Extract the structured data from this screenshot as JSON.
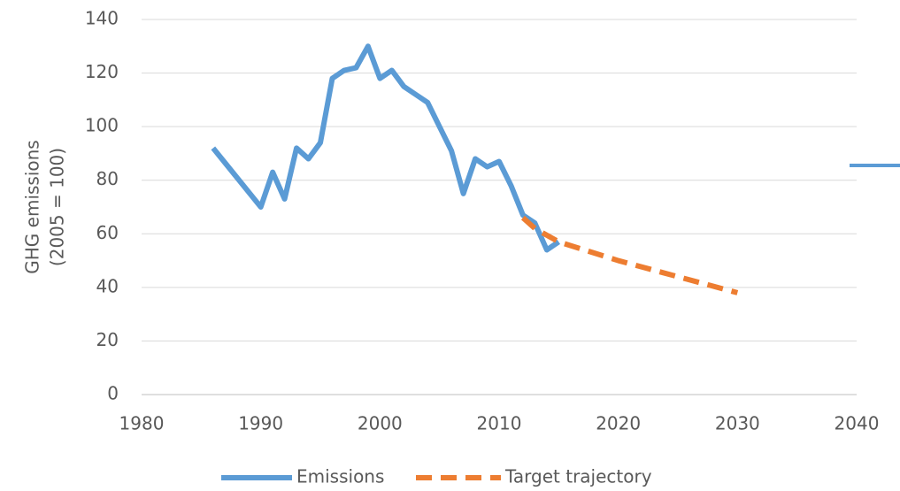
{
  "chart_data": {
    "type": "line",
    "ylabel": [
      "GHG  emissions",
      "(2005 = 100)"
    ],
    "xlim": [
      1980,
      2040
    ],
    "xticks": [
      1980,
      1990,
      2000,
      2010,
      2020,
      2030,
      2040
    ],
    "ylim": [
      0,
      140
    ],
    "yticks": [
      0,
      20,
      40,
      60,
      80,
      100,
      120,
      140
    ],
    "grid": true,
    "legend": "bottom",
    "series": [
      {
        "name": "Emissions",
        "color": "#5b9bd5",
        "dash": false,
        "x": [
          1986,
          1990,
          1991,
          1992,
          1993,
          1994,
          1995,
          1996,
          1997,
          1998,
          1999,
          2000,
          2001,
          2002,
          2003,
          2004,
          2005,
          2006,
          2007,
          2008,
          2009,
          2010,
          2011,
          2012,
          2013,
          2014,
          2015
        ],
        "values": [
          92,
          70,
          83,
          73,
          92,
          88,
          94,
          118,
          121,
          122,
          130,
          118,
          121,
          115,
          112,
          109,
          100,
          91,
          75,
          88,
          85,
          87,
          78,
          67,
          64,
          54,
          57
        ]
      },
      {
        "name": "Target trajectory",
        "color": "#ed7d31",
        "dash": true,
        "x": [
          2012,
          2013,
          2015,
          2020,
          2025,
          2030
        ],
        "values": [
          66,
          62,
          57,
          50,
          44,
          38
        ]
      }
    ]
  }
}
